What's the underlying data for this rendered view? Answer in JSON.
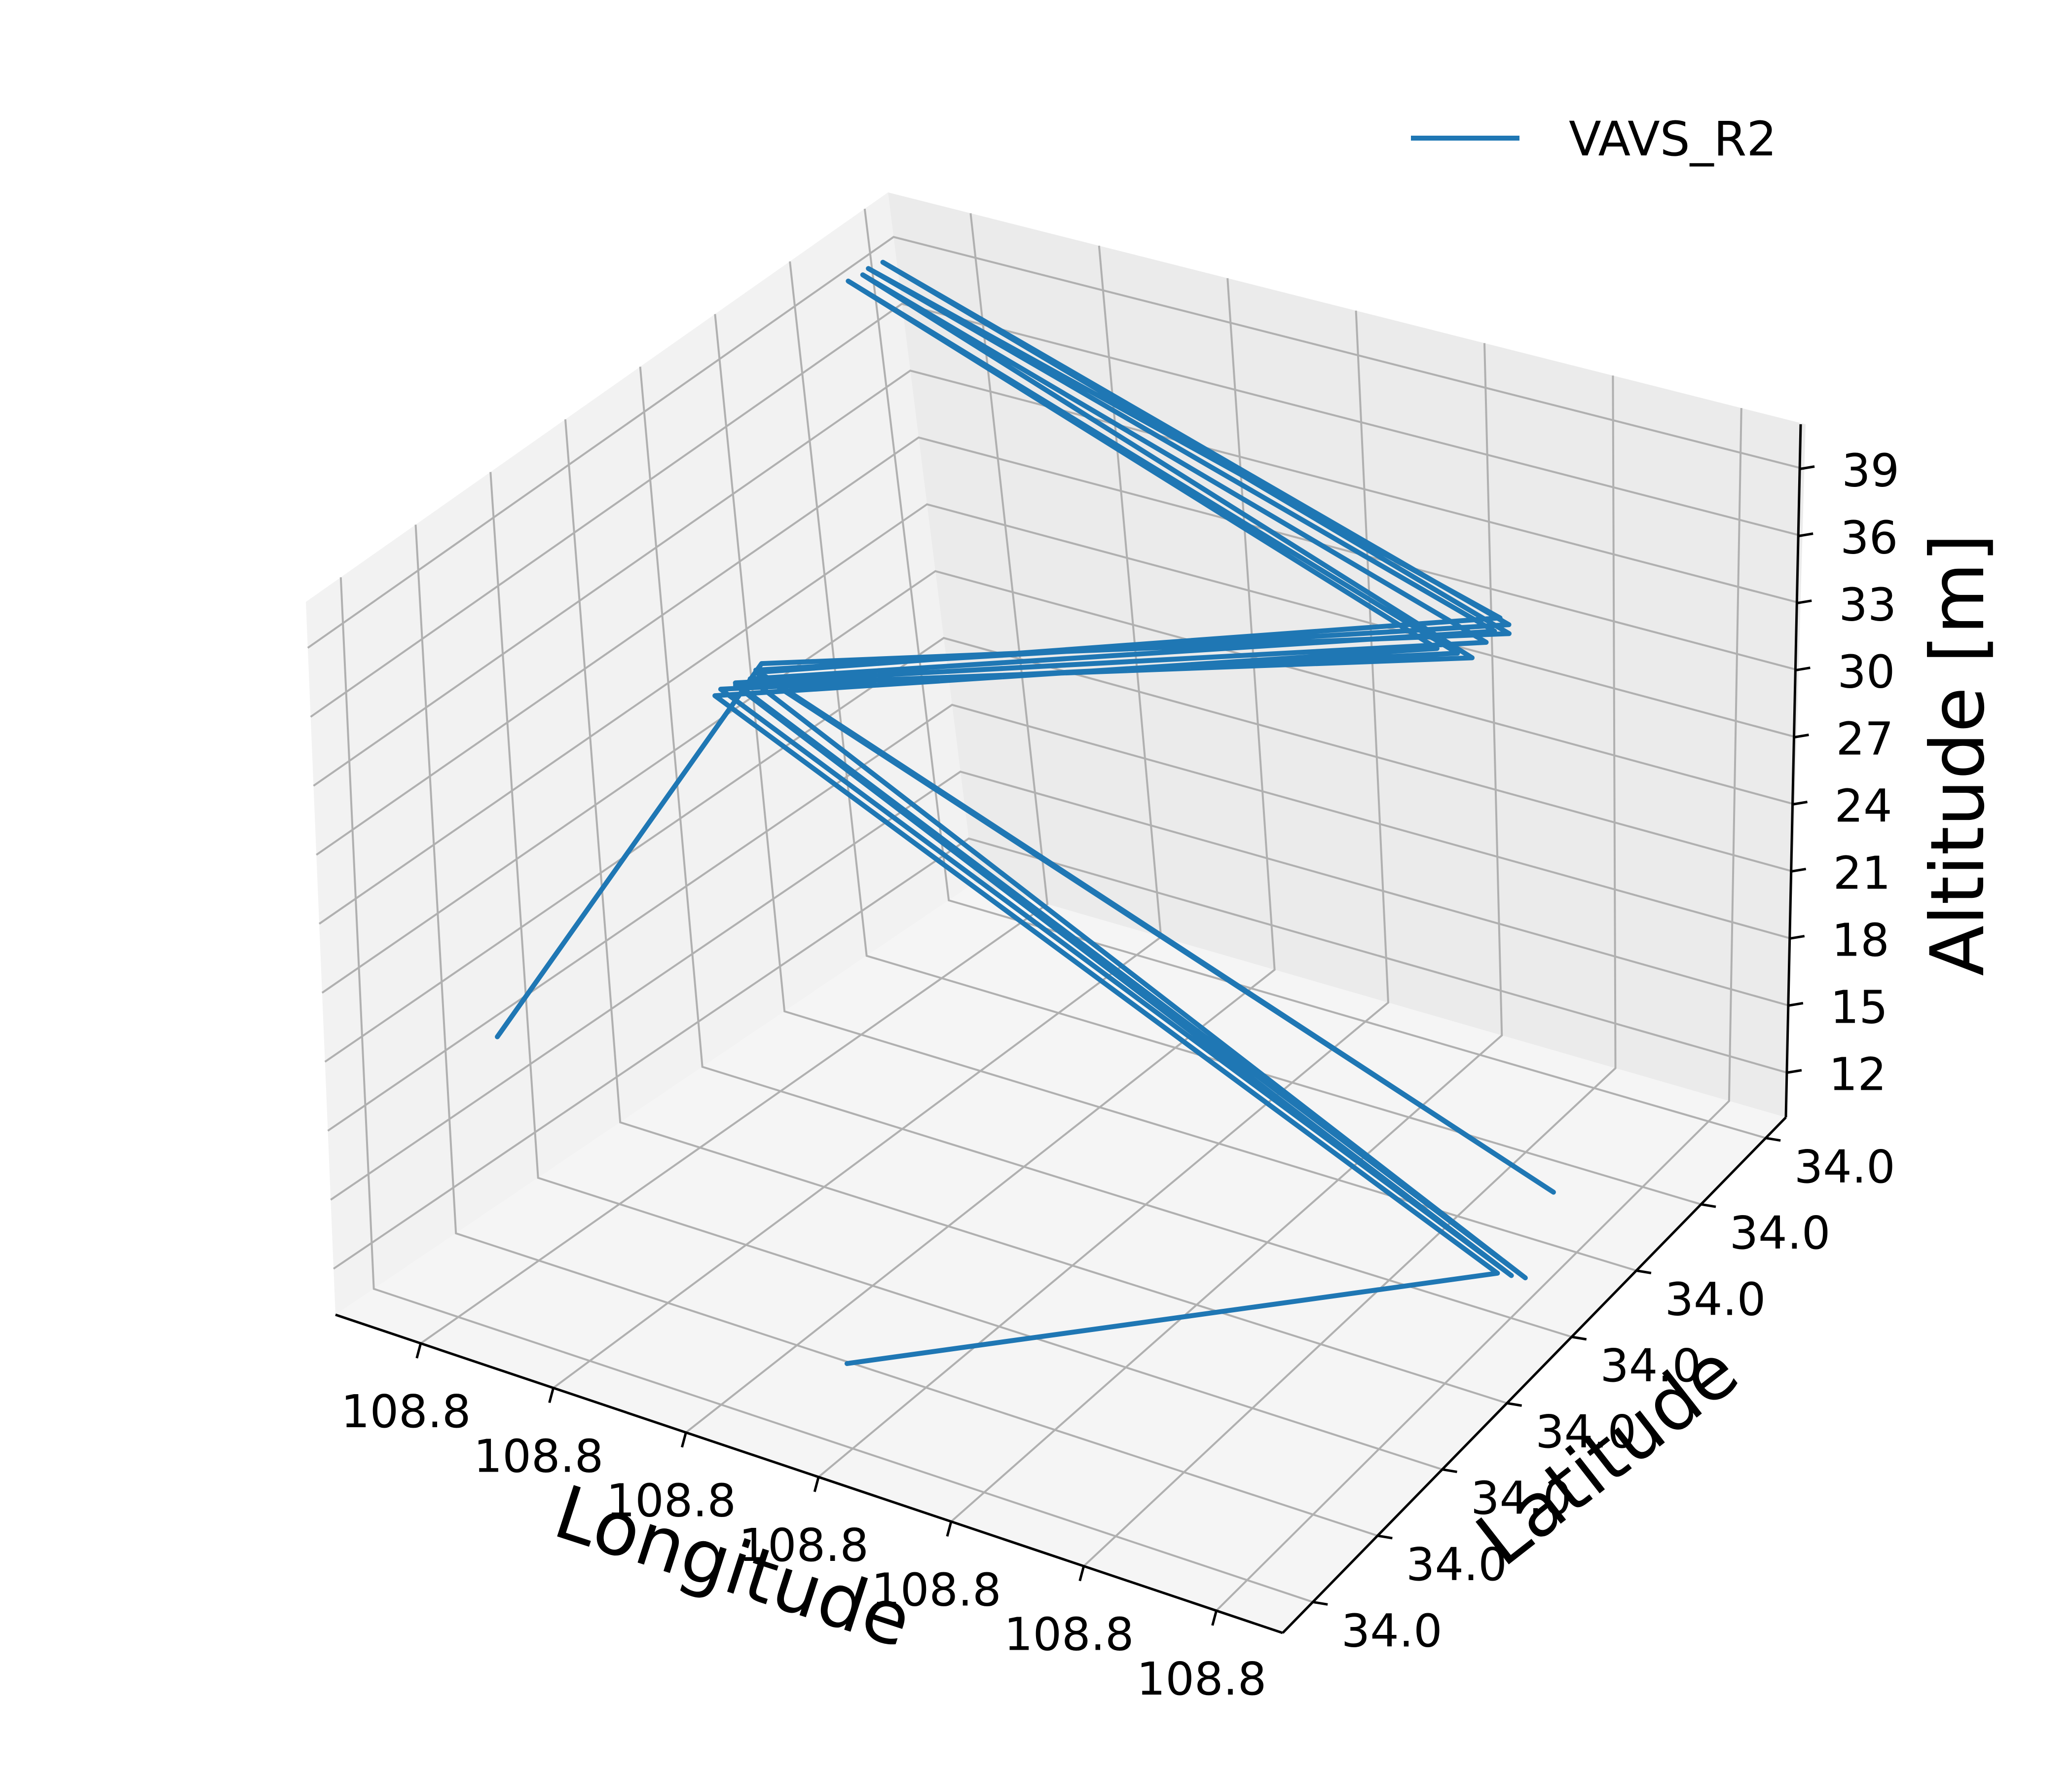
{
  "chart_data": {
    "type": "line",
    "projection": "3d",
    "xlabel": "Longitude",
    "ylabel": "Latitude",
    "zlabel": "Altitude [m]",
    "x_ticks": [
      "108.8",
      "108.8",
      "108.8",
      "108.8",
      "108.8",
      "108.8",
      "108.8"
    ],
    "y_ticks": [
      "34.0",
      "34.0",
      "34.0",
      "34.0",
      "34.0",
      "34.0",
      "34.0",
      "34.0"
    ],
    "z_ticks": [
      "12",
      "15",
      "18",
      "21",
      "24",
      "27",
      "30",
      "33",
      "36",
      "39"
    ],
    "x_range": [
      0,
      1
    ],
    "y_range": [
      0,
      1
    ],
    "z_range": [
      10,
      41
    ],
    "grid": true,
    "legend": {
      "position": "top-right"
    },
    "series": [
      {
        "name": "VAVS_R2",
        "color": "#1f77b4",
        "points": [
          {
            "x": 0.45,
            "y": 0.15,
            "z": 11
          },
          {
            "x": 0.9,
            "y": 0.6,
            "z": 11
          },
          {
            "x": 0.12,
            "y": 0.48,
            "z": 29.5
          },
          {
            "x": 0.62,
            "y": 0.95,
            "z": 28
          },
          {
            "x": 0.05,
            "y": 0.85,
            "z": 40.3
          },
          {
            "x": 0.63,
            "y": 0.97,
            "z": 27.5
          },
          {
            "x": 0.12,
            "y": 0.49,
            "z": 29.6
          },
          {
            "x": 0.91,
            "y": 0.61,
            "z": 10.8
          },
          {
            "x": 0.13,
            "y": 0.5,
            "z": 29.7
          },
          {
            "x": 0.64,
            "y": 0.98,
            "z": 27.2
          },
          {
            "x": 0.06,
            "y": 0.86,
            "z": 40.5
          },
          {
            "x": 0.65,
            "y": 0.99,
            "z": 27.8
          },
          {
            "x": 0.13,
            "y": 0.5,
            "z": 29.8
          },
          {
            "x": 0.92,
            "y": 0.62,
            "z": 10.6
          },
          {
            "x": 0.14,
            "y": 0.51,
            "z": 29.9
          },
          {
            "x": 0.66,
            "y": 0.99,
            "z": 28.4
          },
          {
            "x": 0.06,
            "y": 0.87,
            "z": 40.6
          },
          {
            "x": 0.66,
            "y": 1.0,
            "z": 28.8
          },
          {
            "x": 0.14,
            "y": 0.52,
            "z": 30.0
          },
          {
            "x": 0.93,
            "y": 0.66,
            "z": 13.5
          },
          {
            "x": 0.14,
            "y": 0.52,
            "z": 30.1
          },
          {
            "x": 0.67,
            "y": 1.0,
            "z": 28.6
          },
          {
            "x": 0.07,
            "y": 0.88,
            "z": 40.8
          },
          {
            "x": 0.67,
            "y": 1.0,
            "z": 28.2
          },
          {
            "x": 0.14,
            "y": 0.53,
            "z": 30.2
          },
          {
            "x": 0.05,
            "y": 0.2,
            "z": 19
          }
        ]
      }
    ]
  }
}
